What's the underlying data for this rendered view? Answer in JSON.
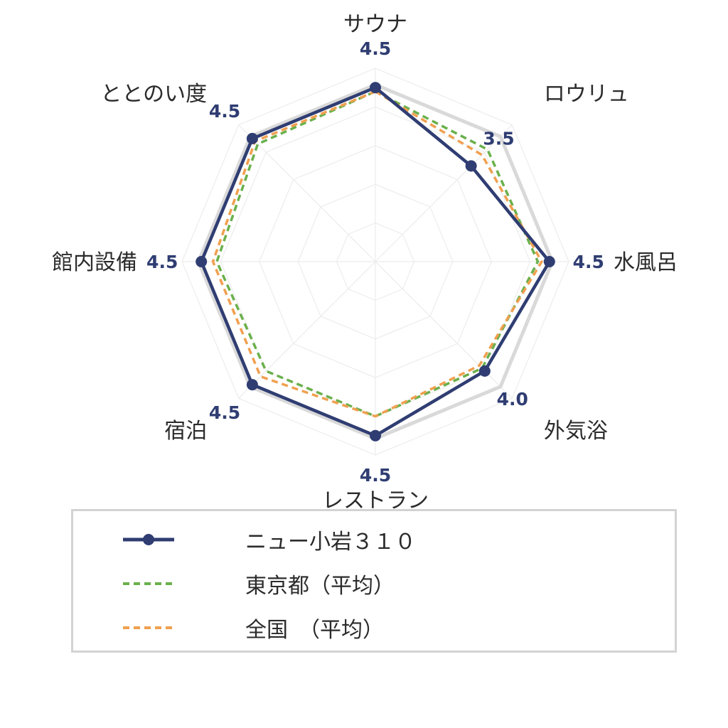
{
  "chart_data": {
    "type": "radar",
    "axes": [
      "サウナ",
      "ロウリュ",
      "水風呂",
      "外気浴",
      "レストラン",
      "宿泊",
      "館内設備",
      "ととのい度"
    ],
    "rmax": 5,
    "grid_levels": [
      1,
      2,
      3,
      4,
      5
    ],
    "value_labels": [
      "4.5",
      "3.5",
      "4.5",
      "4.0",
      "4.5",
      "4.5",
      "4.5",
      "4.5"
    ],
    "series": [
      {
        "name": "ニュー小岩３１０",
        "values": [
          4.5,
          3.5,
          4.5,
          4.0,
          4.5,
          4.5,
          4.5,
          4.5
        ],
        "color": "#2f3d72",
        "style": "solid-marker"
      },
      {
        "name": "東京都（平均）",
        "values": [
          4.4,
          4.1,
          4.2,
          3.9,
          4.0,
          4.0,
          4.1,
          4.3
        ],
        "color": "#6ab04c",
        "style": "dashed"
      },
      {
        "name": "全国　（平均）",
        "values": [
          4.4,
          3.9,
          4.3,
          3.8,
          4.0,
          4.2,
          4.2,
          4.4
        ],
        "color": "#f0a050",
        "style": "dashed"
      }
    ],
    "grid": true,
    "legend_position": "bottom"
  },
  "colors": {
    "reference": "#d9d9d9",
    "grid": "#ececec"
  }
}
